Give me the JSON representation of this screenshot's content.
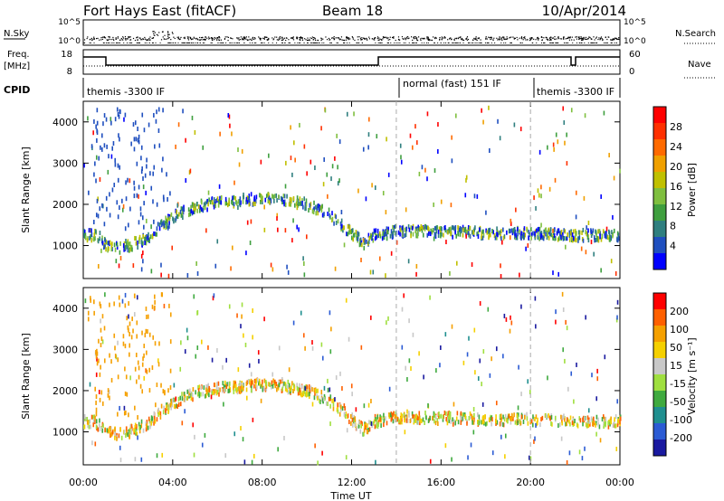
{
  "header": {
    "station": "Fort Hays East (fitACF)",
    "beam": "Beam 18",
    "date": "10/Apr/2014"
  },
  "strips": {
    "nsky_label": "N.Sky",
    "nsky_ticks": [
      "10^5",
      "10^0"
    ],
    "nsearch_label": "N.Search",
    "nsearch_ticks": [
      "10^5",
      "10^0"
    ],
    "freq_label": "Freq.",
    "freq_unit": "[MHz]",
    "freq_ticks": [
      "18",
      "8"
    ],
    "nave_label": "Nave",
    "nave_ticks": [
      "60",
      "0"
    ],
    "cpid_label": "CPID",
    "cpid_segments": [
      {
        "label": "themis -3300 IF",
        "start_h": 0,
        "end_h": 14
      },
      {
        "label": "normal (fast) 151 IF",
        "start_h": 14,
        "end_h": 20
      },
      {
        "label": "themis -3300 IF",
        "start_h": 20,
        "end_h": 24
      }
    ]
  },
  "chart_data": [
    {
      "type": "scatter",
      "name": "power",
      "xlabel": "Time UT",
      "ylabel": "Slant Range [km]",
      "xlim": [
        0,
        24
      ],
      "ylim": [
        200,
        4500
      ],
      "yticks": [
        "1000",
        "2000",
        "3000",
        "4000"
      ],
      "colorbar": {
        "label": "Power [dB]",
        "ticks": [
          "4",
          "8",
          "12",
          "16",
          "20",
          "24",
          "28"
        ],
        "colors": [
          "#0000ff",
          "#1f4fbf",
          "#2f7f7f",
          "#3f9f3f",
          "#7fbf3f",
          "#c0c000",
          "#f0a000",
          "#ff6a00",
          "#ff3000",
          "#ff0000"
        ]
      },
      "band": [
        [
          0,
          1300
        ],
        [
          0.5,
          1300
        ],
        [
          1,
          1050
        ],
        [
          1.5,
          1000
        ],
        [
          2,
          1050
        ],
        [
          2.5,
          1150
        ],
        [
          3,
          1300
        ],
        [
          3.5,
          1550
        ],
        [
          4,
          1750
        ],
        [
          5,
          2000
        ],
        [
          6,
          2100
        ],
        [
          7,
          2150
        ],
        [
          8,
          2200
        ],
        [
          9,
          2150
        ],
        [
          10,
          2050
        ],
        [
          11,
          1800
        ],
        [
          12,
          1350
        ],
        [
          12.5,
          1100
        ],
        [
          13,
          1300
        ],
        [
          14,
          1400
        ],
        [
          16,
          1400
        ],
        [
          18,
          1350
        ],
        [
          20,
          1350
        ],
        [
          22,
          1300
        ],
        [
          24,
          1300
        ]
      ]
    },
    {
      "type": "scatter",
      "name": "velocity",
      "xlabel": "Time UT",
      "ylabel": "Slant Range [km]",
      "xlim": [
        0,
        24
      ],
      "ylim": [
        200,
        4500
      ],
      "yticks": [
        "1000",
        "2000",
        "3000",
        "4000"
      ],
      "colorbar": {
        "label": "Velocity [m s⁻¹]",
        "ticks": [
          "200",
          "100",
          "50",
          "15",
          "-15",
          "-50",
          "-100",
          "-200"
        ],
        "colors": [
          "#1a1aa0",
          "#2b5bd4",
          "#1f8f8f",
          "#3faa3f",
          "#9fdf3f",
          "#c8c8c8",
          "#f5d000",
          "#f5a000",
          "#ff6000",
          "#ff0000"
        ]
      },
      "band": [
        [
          0,
          1300
        ],
        [
          0.5,
          1300
        ],
        [
          1,
          1050
        ],
        [
          1.5,
          1000
        ],
        [
          2,
          1050
        ],
        [
          2.5,
          1150
        ],
        [
          3,
          1300
        ],
        [
          3.5,
          1550
        ],
        [
          4,
          1750
        ],
        [
          5,
          2000
        ],
        [
          6,
          2100
        ],
        [
          7,
          2150
        ],
        [
          8,
          2200
        ],
        [
          9,
          2150
        ],
        [
          10,
          2050
        ],
        [
          11,
          1800
        ],
        [
          12,
          1350
        ],
        [
          12.5,
          1100
        ],
        [
          13,
          1300
        ],
        [
          14,
          1400
        ],
        [
          16,
          1400
        ],
        [
          18,
          1350
        ],
        [
          20,
          1350
        ],
        [
          22,
          1300
        ],
        [
          24,
          1300
        ]
      ]
    }
  ],
  "time_axis": {
    "ticks": [
      "00:00",
      "04:00",
      "08:00",
      "12:00",
      "16:00",
      "20:00",
      "00:00"
    ],
    "label": "Time UT"
  }
}
